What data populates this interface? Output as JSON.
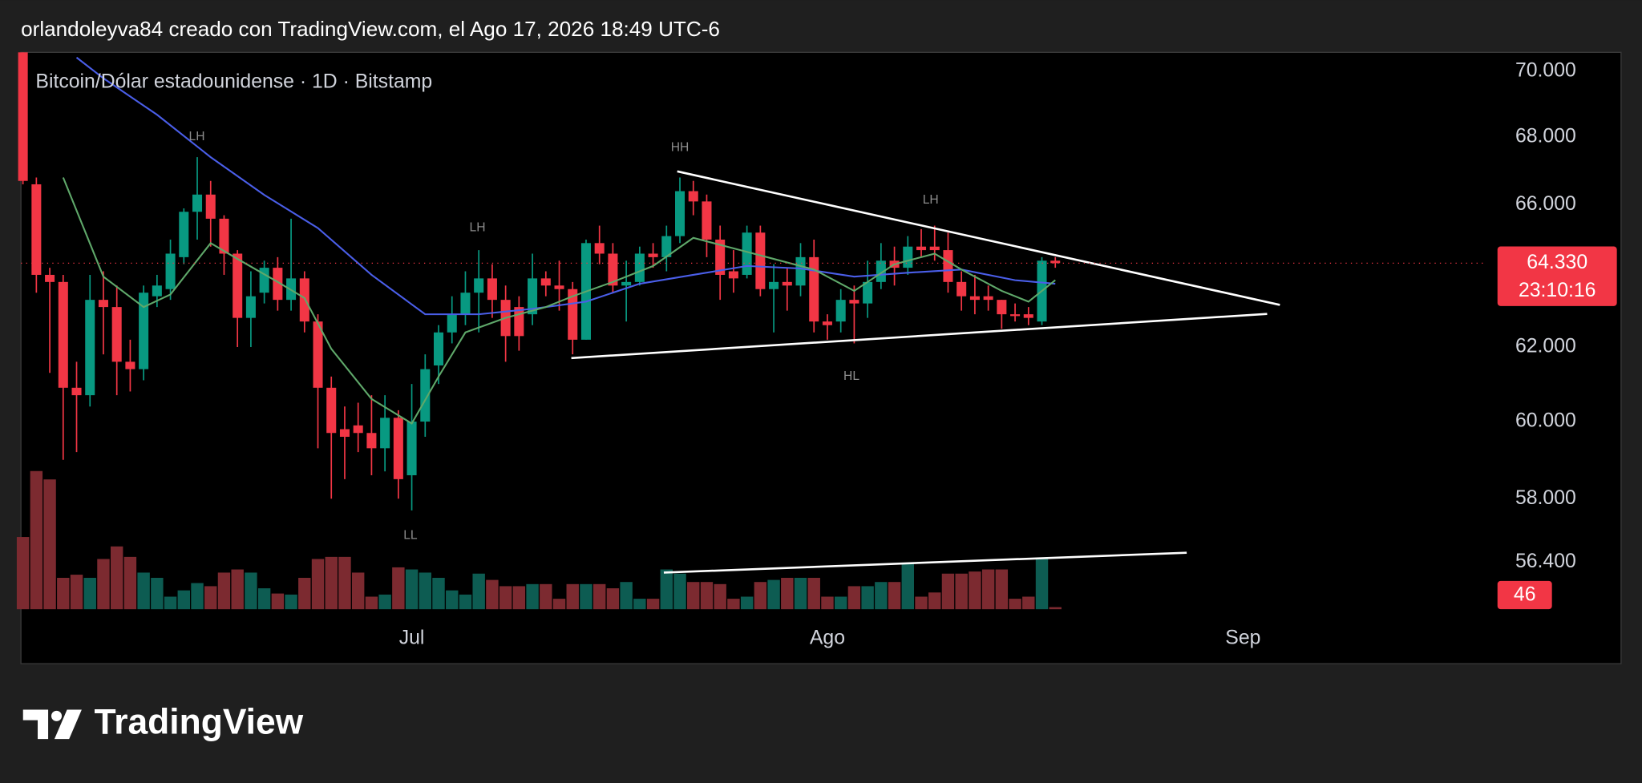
{
  "header": "orlandoleyva84 creado con TradingView.com, el Ago 17, 2026 18:49 UTC-6",
  "logo": "TradingView",
  "chart_data": {
    "type": "candlestick",
    "title": "Bitcoin/Dólar estadounidense · 1D · Bitstamp",
    "up_color": "#089981",
    "down_color": "#f23645",
    "volume_up_color": "#0d5c52",
    "volume_down_color": "#7c2a30",
    "log": true,
    "xlim": [
      -0.15,
      109.2
    ],
    "ylim": [
      53940,
      70580
    ],
    "y2lim": [
      0,
      4600
    ],
    "xticks": [
      {
        "value": 29,
        "label": "Jul"
      },
      {
        "value": 60,
        "label": "Ago"
      },
      {
        "value": 91,
        "label": "Sep"
      }
    ],
    "yticks": [
      {
        "value": 70000,
        "label": "70.000"
      },
      {
        "value": 68000,
        "label": "68.000"
      },
      {
        "value": 66000,
        "label": "66.000"
      },
      {
        "value": 62000,
        "label": "62.000"
      },
      {
        "value": 60000,
        "label": "60.000"
      },
      {
        "value": 58000,
        "label": "58.000"
      },
      {
        "value": 56400,
        "label": "56.400"
      }
    ],
    "open": [
      70580,
      66600,
      64000,
      63800,
      60900,
      60700,
      63300,
      63100,
      61600,
      61400,
      63400,
      63600,
      64500,
      65800,
      66300,
      65600,
      64600,
      62800,
      63500,
      64200,
      63300,
      63900,
      62700,
      60900,
      59800,
      59900,
      59700,
      59300,
      60100,
      58600,
      60000,
      61500,
      62400,
      62900,
      63500,
      63900,
      63300,
      63100,
      62900,
      63900,
      63700,
      63600,
      62200,
      64900,
      64600,
      63700,
      63800,
      64600,
      64500,
      65100,
      66400,
      66100,
      65000,
      64100,
      64000,
      65200,
      63600,
      63800,
      63700,
      64500,
      62700,
      62700,
      63300,
      63200,
      63800,
      64400,
      64200,
      64800,
      64800,
      64700,
      63800,
      63400,
      63400,
      63300,
      62900,
      62900,
      62700,
      64400
    ],
    "high": [
      70580,
      66800,
      64200,
      64000,
      61600,
      64000,
      64100,
      63700,
      62200,
      63700,
      64000,
      65000,
      65900,
      67400,
      66700,
      65700,
      64700,
      64100,
      64400,
      64500,
      65600,
      64100,
      62900,
      61200,
      60400,
      60500,
      60700,
      60700,
      60300,
      61000,
      61800,
      62600,
      63400,
      64100,
      64700,
      64300,
      63700,
      63400,
      64600,
      64100,
      64400,
      63800,
      65000,
      65400,
      64900,
      64400,
      64800,
      64900,
      65400,
      66800,
      66700,
      66300,
      65400,
      64700,
      65400,
      65400,
      64300,
      64200,
      64900,
      65000,
      62900,
      63600,
      63700,
      64400,
      64900,
      64800,
      65100,
      65300,
      65400,
      65200,
      64100,
      64000,
      63700,
      63300,
      63200,
      63100,
      64500,
      64500
    ],
    "low": [
      66600,
      63500,
      61300,
      59000,
      59200,
      60400,
      61800,
      60700,
      60800,
      61100,
      63100,
      63300,
      64300,
      65000,
      64800,
      64000,
      62000,
      62000,
      63200,
      63000,
      63000,
      62400,
      59300,
      58000,
      58500,
      59200,
      58600,
      58700,
      58000,
      57700,
      59600,
      61000,
      62100,
      62600,
      62400,
      62800,
      61600,
      61900,
      62600,
      63400,
      63000,
      61800,
      62200,
      64300,
      63500,
      62700,
      63700,
      64200,
      64100,
      64900,
      65700,
      64500,
      63300,
      63500,
      63900,
      63400,
      62400,
      63000,
      63400,
      62400,
      62200,
      62400,
      62100,
      62800,
      63600,
      63700,
      64000,
      64500,
      64400,
      63500,
      63000,
      62900,
      63000,
      62500,
      62700,
      62600,
      62600,
      64200
    ],
    "close": [
      66700,
      64000,
      63800,
      60900,
      60700,
      63300,
      63100,
      61600,
      61400,
      63500,
      63700,
      64600,
      65800,
      66300,
      65600,
      64600,
      62800,
      63400,
      64200,
      63300,
      63900,
      62700,
      60900,
      59700,
      59600,
      59700,
      59300,
      60100,
      58500,
      60000,
      61400,
      62400,
      62900,
      63500,
      63900,
      63300,
      62300,
      62300,
      63900,
      63700,
      63600,
      62200,
      64900,
      64600,
      63700,
      63800,
      64600,
      64500,
      65100,
      66400,
      66100,
      65000,
      64000,
      63900,
      65200,
      63600,
      63800,
      63700,
      64500,
      62700,
      62600,
      63300,
      63200,
      63800,
      64400,
      64200,
      64800,
      64700,
      64700,
      63800,
      63400,
      63300,
      63300,
      62900,
      62850,
      62800,
      64400,
      64330
    ],
    "volume": [
      1587,
      3036,
      2852,
      690,
      759,
      690,
      1104,
      1380,
      1150,
      805,
      690,
      276,
      414,
      575,
      506,
      805,
      874,
      805,
      460,
      345,
      322,
      690,
      1104,
      1150,
      1150,
      805,
      276,
      322,
      920,
      874,
      805,
      690,
      414,
      322,
      782,
      644,
      506,
      506,
      552,
      552,
      230,
      552,
      552,
      552,
      460,
      598,
      230,
      230,
      874,
      782,
      598,
      598,
      552,
      230,
      276,
      598,
      644,
      690,
      690,
      690,
      276,
      276,
      506,
      506,
      598,
      598,
      1012,
      276,
      368,
      782,
      782,
      828,
      874,
      874,
      230,
      276,
      1104,
      46
    ],
    "moving_averages": [
      {
        "color": "#4a5ee8",
        "x": [
          4,
          6,
          10,
          14,
          18,
          22,
          26,
          30,
          34,
          38,
          42,
          46,
          50,
          54,
          58,
          62,
          66,
          70,
          74,
          77
        ],
        "values": [
          70420,
          69780,
          68670,
          67400,
          66290,
          65330,
          64000,
          62900,
          62900,
          63050,
          63250,
          63750,
          64000,
          64250,
          64180,
          63950,
          64060,
          64150,
          63850,
          63750
        ]
      },
      {
        "color": "#5fa86a",
        "x": [
          3,
          6,
          9,
          11,
          14,
          16,
          19,
          21,
          23,
          26,
          29,
          31,
          33,
          36,
          39,
          41,
          44,
          47,
          50,
          53,
          56,
          59,
          62,
          65,
          68,
          70,
          73,
          75,
          77
        ],
        "values": [
          66800,
          63950,
          63100,
          63450,
          64900,
          64450,
          63800,
          63350,
          61950,
          60600,
          59950,
          61200,
          62400,
          62800,
          63100,
          63400,
          63800,
          64250,
          65050,
          64750,
          64450,
          64150,
          63550,
          64300,
          64600,
          64150,
          63550,
          63250,
          63850
        ]
      }
    ],
    "trend_lines": [
      {
        "color": "#ffffff",
        "pane": "price",
        "x": [
          48.8,
          93.75
        ],
        "y": [
          66980,
          63160
        ]
      },
      {
        "color": "#ffffff",
        "pane": "price",
        "x": [
          40.9,
          92.8
        ],
        "y": [
          61700,
          62910
        ]
      },
      {
        "color": "#ffffff",
        "pane": "volume",
        "x": [
          47.8,
          86.8
        ],
        "y": [
          805,
          1242
        ]
      }
    ],
    "annotations": [
      {
        "text": "LH",
        "x": 12.97,
        "y": 68000
      },
      {
        "text": "LH",
        "x": 33.9,
        "y": 65330
      },
      {
        "text": "HH",
        "x": 49,
        "y": 67680
      },
      {
        "text": "LH",
        "x": 67.7,
        "y": 66130
      },
      {
        "text": "HL",
        "x": 61.8,
        "y": 61200
      },
      {
        "text": "LL",
        "x": 28.9,
        "y": 57060
      }
    ],
    "last_price": {
      "value": 64330,
      "label": "64.330"
    },
    "countdown": "23:10:16"
  }
}
